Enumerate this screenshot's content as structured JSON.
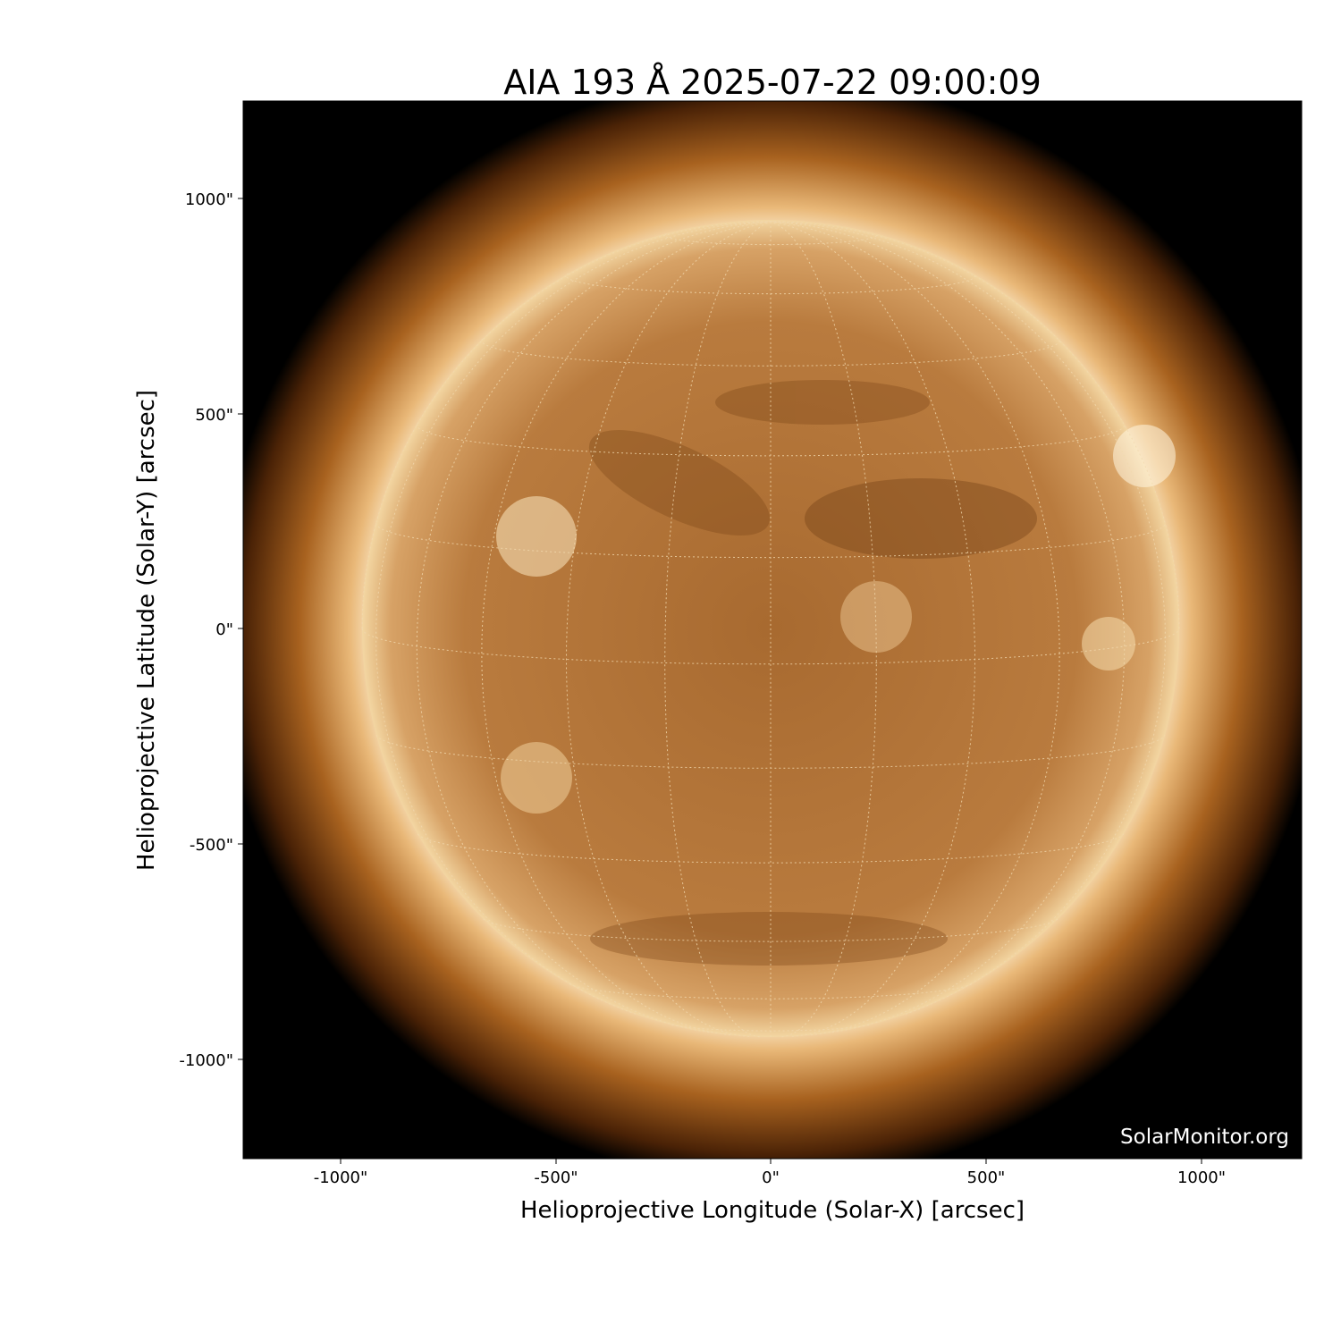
{
  "title": "AIA 193 Å 2025-07-22 09:00:09",
  "xlabel": "Helioprojective Longitude (Solar-X) [arcsec]",
  "ylabel": "Helioprojective Latitude (Solar-Y) [arcsec]",
  "xticks": [
    "-1000\"",
    "-500\"",
    "0\"",
    "500\"",
    "1000\""
  ],
  "yticks": [
    "1000\"",
    "500\"",
    "0\"",
    "-500\"",
    "-1000\""
  ],
  "watermark": "SolarMonitor.org",
  "colors": {
    "background": "#000000",
    "disk": "#b87a3c",
    "limb": "#f6e2b8",
    "grid": "#f2d9ae"
  }
}
